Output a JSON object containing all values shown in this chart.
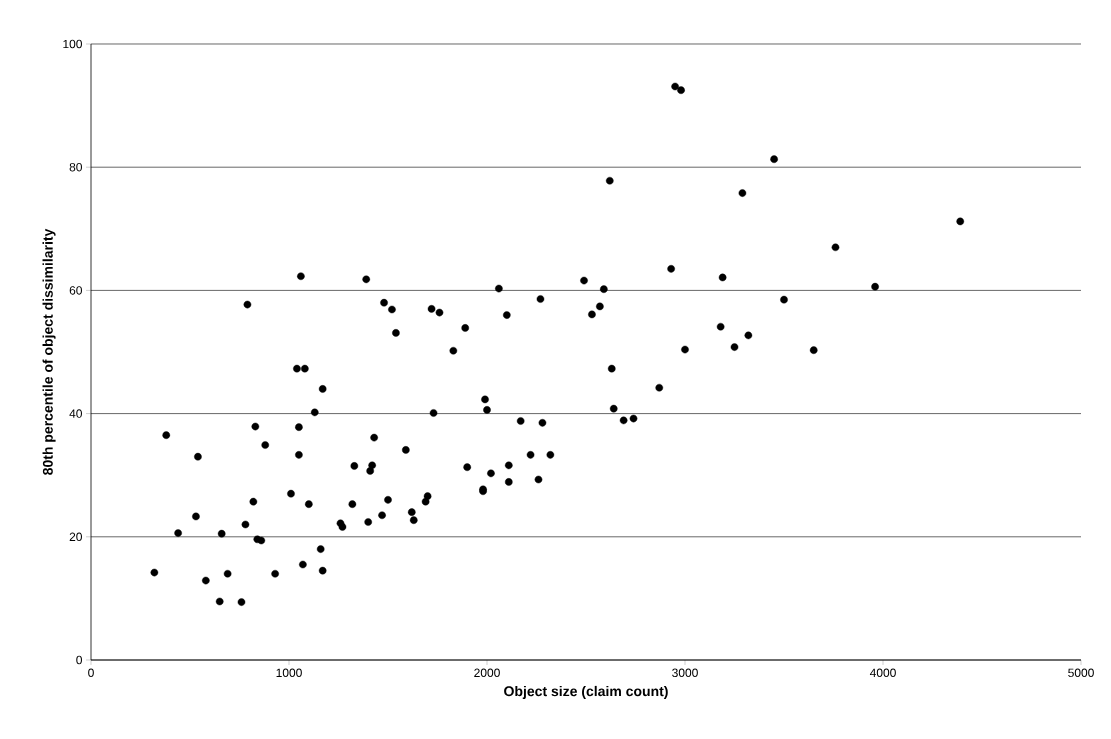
{
  "chart_data": {
    "type": "scatter",
    "xlabel": "Object size (claim count)",
    "ylabel": "80th percentile of object dissimilarity",
    "xlim": [
      0,
      5000
    ],
    "xticks": [
      0,
      1000,
      2000,
      3000,
      4000,
      5000
    ],
    "ylim": [
      0,
      100
    ],
    "yticks": [
      0,
      20,
      40,
      60,
      80,
      100
    ],
    "grid": "y",
    "series": [
      {
        "color": "#000000",
        "x": [
          320,
          380,
          440,
          530,
          540,
          580,
          650,
          660,
          690,
          760,
          780,
          790,
          820,
          830,
          840,
          860,
          880,
          930,
          1010,
          1040,
          1050,
          1050,
          1060,
          1070,
          1080,
          1100,
          1130,
          1160,
          1170,
          1170,
          1260,
          1270,
          1320,
          1330,
          1390,
          1400,
          1410,
          1420,
          1430,
          1470,
          1480,
          1500,
          1520,
          1540,
          1590,
          1620,
          1630,
          1690,
          1700,
          1720,
          1730,
          1760,
          1830,
          1890,
          1900,
          1980,
          1980,
          1990,
          2000,
          2020,
          2060,
          2100,
          2110,
          2110,
          2170,
          2220,
          2260,
          2270,
          2280,
          2320,
          2490,
          2530,
          2570,
          2590,
          2620,
          2630,
          2640,
          2690,
          2740,
          2870,
          2930,
          2950,
          2980,
          3000,
          3180,
          3190,
          3250,
          3290,
          3320,
          3450,
          3500,
          3650,
          3760,
          3960,
          4390
        ],
        "values": [
          14.2,
          36.5,
          20.6,
          23.3,
          33,
          12.9,
          9.5,
          20.5,
          14,
          9.4,
          22,
          57.7,
          25.7,
          37.9,
          19.6,
          19.4,
          34.9,
          14,
          27,
          47.3,
          33.3,
          37.8,
          62.3,
          15.5,
          47.3,
          25.3,
          40.2,
          18,
          14.5,
          44,
          22.2,
          21.6,
          25.3,
          31.5,
          61.8,
          22.4,
          30.7,
          31.6,
          36.1,
          23.5,
          58,
          26,
          56.9,
          53.1,
          34.1,
          24,
          22.7,
          25.7,
          26.6,
          57,
          40.1,
          56.4,
          50.2,
          53.9,
          31.3,
          27.7,
          27.4,
          42.3,
          40.6,
          30.3,
          60.3,
          56,
          31.6,
          28.9,
          38.8,
          33.3,
          29.3,
          58.6,
          38.5,
          33.3,
          61.6,
          56.1,
          57.4,
          60.2,
          77.8,
          47.3,
          40.8,
          38.9,
          39.2,
          44.2,
          63.5,
          93.1,
          92.5,
          50.4,
          54.1,
          62.1,
          50.8,
          75.8,
          52.7,
          81.3,
          58.5,
          50.3,
          67,
          60.6,
          71.2
        ]
      }
    ]
  }
}
